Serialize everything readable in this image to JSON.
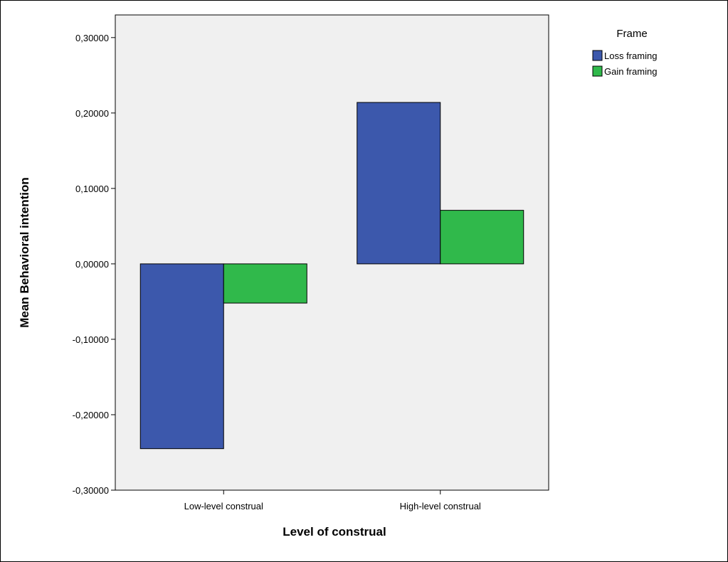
{
  "chart_data": {
    "type": "bar",
    "title": "",
    "xlabel": "Level of construal",
    "ylabel": "Mean Behavioral intention",
    "categories": [
      "Low-level construal",
      "High-level construal"
    ],
    "series": [
      {
        "name": "Loss framing",
        "values": [
          -0.245,
          0.214
        ]
      },
      {
        "name": "Gain framing",
        "values": [
          -0.052,
          0.071
        ]
      }
    ],
    "ylim": [
      -0.3,
      0.33
    ],
    "yticks": [
      -0.3,
      -0.2,
      -0.1,
      0.0,
      0.1,
      0.2,
      0.3
    ],
    "ytick_labels": [
      "-0,30000",
      "-0,20000",
      "-0,10000",
      "0,00000",
      "0,10000",
      "0,20000",
      "0,30000"
    ],
    "grid": false,
    "legend": {
      "title": "Frame",
      "placement": "top-right, outside plot"
    },
    "colors": {
      "Loss framing": "#3c58ac",
      "Gain framing": "#30b94b",
      "plot_background": "#f0f0f0"
    }
  }
}
